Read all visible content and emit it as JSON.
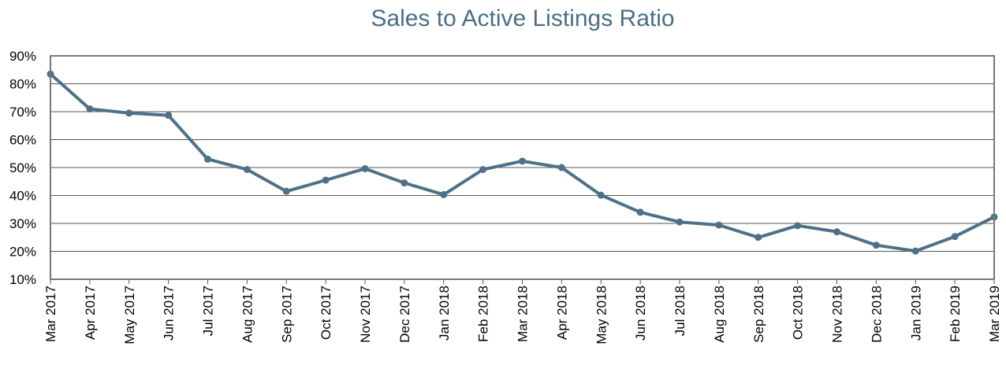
{
  "chart_data": {
    "type": "line",
    "title": "Sales to Active Listings Ratio",
    "xlabel": "",
    "ylabel": "",
    "ylim": [
      10,
      90
    ],
    "yticks": [
      "10%",
      "20%",
      "30%",
      "40%",
      "50%",
      "60%",
      "70%",
      "80%",
      "90%"
    ],
    "categories": [
      "Mar 2017",
      "Apr 2017",
      "May 2017",
      "Jun 2017",
      "Jul 2017",
      "Aug 2017",
      "Sep 2017",
      "Oct 2017",
      "Nov 2017",
      "Dec 2017",
      "Jan 2018",
      "Feb 2018",
      "Mar 2018",
      "Apr 2018",
      "May 2018",
      "Jun 2018",
      "Jul 2018",
      "Aug 2018",
      "Sep 2018",
      "Oct 2018",
      "Nov 2018",
      "Dec 2018",
      "Jan 2019",
      "Feb 2019",
      "Mar 2019"
    ],
    "series": [
      {
        "values": [
          83.5,
          71,
          69.5,
          68.7,
          53,
          49.3,
          41.5,
          45.5,
          49.6,
          44.5,
          40.3,
          49.3,
          52.3,
          50,
          40.1,
          34,
          30.5,
          29.4,
          25,
          29.2,
          27,
          22.2,
          20.1,
          25.3,
          32.3
        ]
      }
    ],
    "grid": true,
    "legend": "none",
    "colors": {
      "line": "#4f7187",
      "title": "#4a6f85"
    }
  }
}
